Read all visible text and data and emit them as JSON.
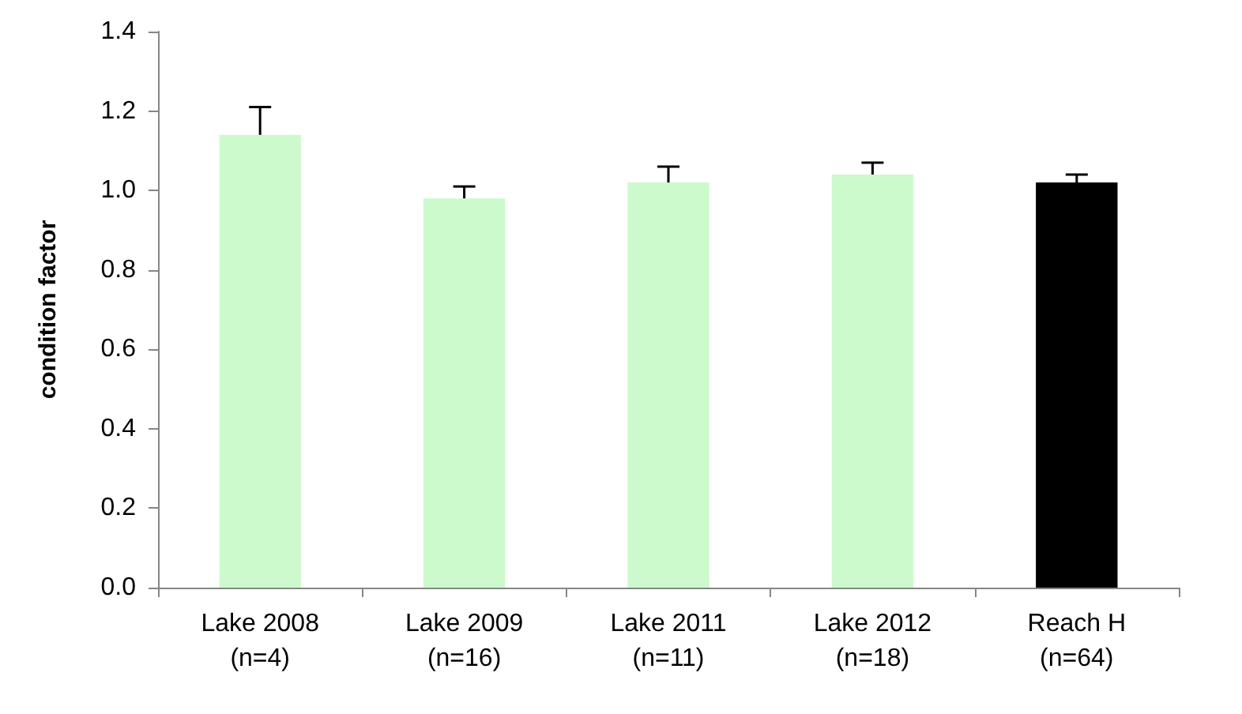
{
  "chart_data": {
    "type": "bar",
    "ylabel": "condition factor",
    "categories": [
      "Lake 2008\n(n=4)",
      "Lake 2009\n(n=16)",
      "Lake 2011\n(n=11)",
      "Lake 2012\n(n=18)",
      "Reach H\n(n=64)"
    ],
    "values": [
      1.14,
      0.98,
      1.02,
      1.04,
      1.02
    ],
    "colors": [
      "#ccfacc",
      "#ccfacc",
      "#ccfacc",
      "#ccfacc",
      "#000000"
    ],
    "errors": [
      [
        1.14,
        1.21
      ],
      [
        0.98,
        1.01
      ],
      [
        1.02,
        1.06
      ],
      [
        1.04,
        1.07
      ],
      [
        1.02,
        1.04
      ]
    ],
    "ylim": [
      0,
      1.4
    ],
    "yticks": [
      {
        "value": 0,
        "label": "0.0"
      },
      {
        "value": 0.2,
        "label": "0.2"
      },
      {
        "value": 0.4,
        "label": "0.4"
      },
      {
        "value": 0.6,
        "label": "0.6"
      },
      {
        "value": 0.8,
        "label": "0.8"
      },
      {
        "value": 1,
        "label": "1.0"
      },
      {
        "value": 1.2,
        "label": "1.2"
      },
      {
        "value": 1.4,
        "label": "1.4"
      }
    ],
    "grid": false
  }
}
